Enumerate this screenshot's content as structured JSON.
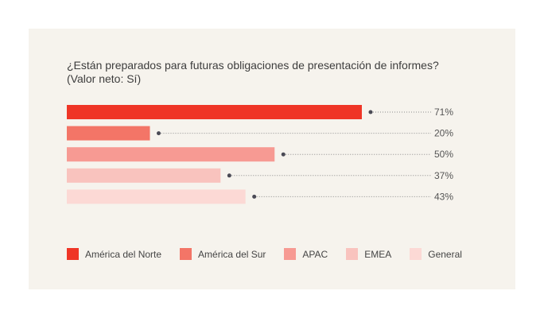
{
  "title": {
    "line1": "¿Están preparados para futuras obligaciones de presentación de informes?",
    "line2": "(Valor neto: Sí)"
  },
  "chart_data": {
    "type": "bar",
    "orientation": "horizontal",
    "title": "¿Están preparados para futuras obligaciones de presentación de informes? (Valor neto: Sí)",
    "categories": [
      "América del Norte",
      "América del Sur",
      "APAC",
      "EMEA",
      "General"
    ],
    "values": [
      71,
      20,
      50,
      37,
      43
    ],
    "value_labels": [
      "71%",
      "20%",
      "50%",
      "37%",
      "43%"
    ],
    "colors": [
      "#ef3526",
      "#f37567",
      "#f79a93",
      "#f9c3be",
      "#fcd9d5"
    ],
    "xlim": [
      0,
      100
    ],
    "xlabel": "",
    "ylabel": "",
    "grid": false,
    "legend_position": "bottom",
    "unit": "%"
  },
  "legend": [
    {
      "label": "América del Norte",
      "color": "#ef3526"
    },
    {
      "label": "América del Sur",
      "color": "#f37567"
    },
    {
      "label": "APAC",
      "color": "#f79a93"
    },
    {
      "label": "EMEA",
      "color": "#f9c3be"
    },
    {
      "label": "General",
      "color": "#fcd9d5"
    }
  ]
}
